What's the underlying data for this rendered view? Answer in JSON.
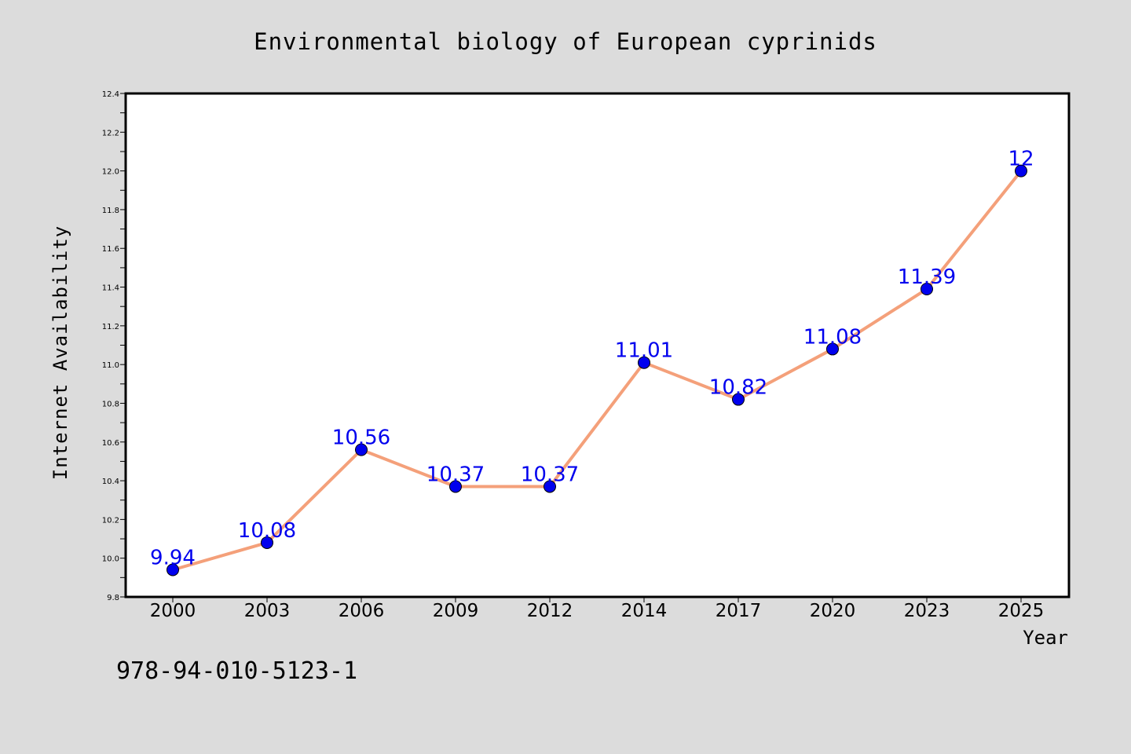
{
  "chart_data": {
    "type": "line",
    "title": "Environmental biology of European cyprinids",
    "xlabel": "Year",
    "ylabel": "Internet Availability",
    "categories": [
      "2000",
      "2003",
      "2006",
      "2009",
      "2012",
      "2014",
      "2017",
      "2020",
      "2023",
      "2025"
    ],
    "series": [
      {
        "values": [
          9.94,
          10.08,
          10.56,
          10.37,
          10.37,
          11.01,
          10.82,
          11.08,
          11.39,
          12.0
        ],
        "labels": [
          "9.94",
          "10.08",
          "10.56",
          "10.37",
          "10.37",
          "11.01",
          "10.82",
          "11.08",
          "11.39",
          "12"
        ],
        "line_color": "#f4a07a",
        "marker_color": "#0000ee",
        "label_color": "#0000ee"
      }
    ],
    "ylim": [
      9.8,
      12.4
    ],
    "yticks": [
      "9.8",
      "10.0",
      "10.2",
      "10.4",
      "10.6",
      "10.8",
      "11.0",
      "11.2",
      "11.4",
      "11.6",
      "11.8",
      "12.0",
      "12.2",
      "12.4"
    ],
    "grid": false,
    "legend": "none"
  },
  "annotation": {
    "isbn": "978-94-010-5123-1"
  },
  "colors": {
    "background": "#dcdcdc",
    "plot_background": "#ffffff",
    "axis": "#000000"
  }
}
